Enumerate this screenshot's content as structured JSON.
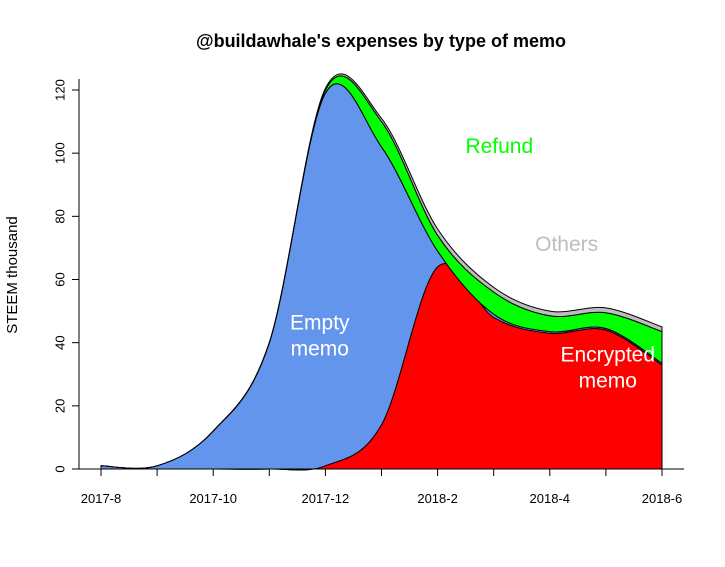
{
  "chart_data": {
    "type": "area",
    "stacked": true,
    "title": "@buildawhale's expenses by type of memo",
    "xlabel": "",
    "ylabel": "STEEM thousand",
    "ylim": [
      0,
      125
    ],
    "yticks": [
      0,
      20,
      40,
      60,
      80,
      100,
      120
    ],
    "xlim": [
      "2017-08",
      "2018-06"
    ],
    "xticks": [
      "2017-8",
      "2017-10",
      "2017-12",
      "2018-2",
      "2018-4",
      "2018-6"
    ],
    "grid": false,
    "legend": "none",
    "x": [
      "2017-08",
      "2017-09",
      "2017-10",
      "2017-11",
      "2017-12",
      "2018-01",
      "2018-02",
      "2018-03",
      "2018-04",
      "2018-05",
      "2018-06"
    ],
    "series": [
      {
        "name": "Encrypted memo",
        "color": "#ff0000",
        "values": [
          0,
          0,
          0,
          0,
          1,
          14,
          64,
          48,
          43,
          44,
          33
        ]
      },
      {
        "name": "Empty memo",
        "color": "#6495ed",
        "values": [
          1,
          1,
          12,
          40,
          118,
          88,
          5,
          1,
          0.5,
          0.5,
          0.5
        ]
      },
      {
        "name": "Refund",
        "color": "#00ff00",
        "values": [
          0,
          0,
          0,
          0,
          1,
          8,
          5,
          7,
          5,
          5,
          10
        ]
      },
      {
        "name": "Others",
        "color": "#bebebe",
        "values": [
          0,
          0,
          0,
          0,
          0.5,
          1,
          2,
          1.5,
          1.5,
          1.5,
          1.5
        ]
      }
    ],
    "annotations": [
      {
        "text": "Empty\nmemo",
        "color": "#ffffff",
        "x": "2017-11-28",
        "y": 40
      },
      {
        "text": "Encrypted\nmemo",
        "color": "#ffffff",
        "x": "2018-05-02",
        "y": 30
      },
      {
        "text": "Refund",
        "color": "#00ff00",
        "x": "2018-03-04",
        "y": 100
      },
      {
        "text": "Others",
        "color": "#bebebe",
        "x": "2018-04-10",
        "y": 69
      }
    ]
  }
}
